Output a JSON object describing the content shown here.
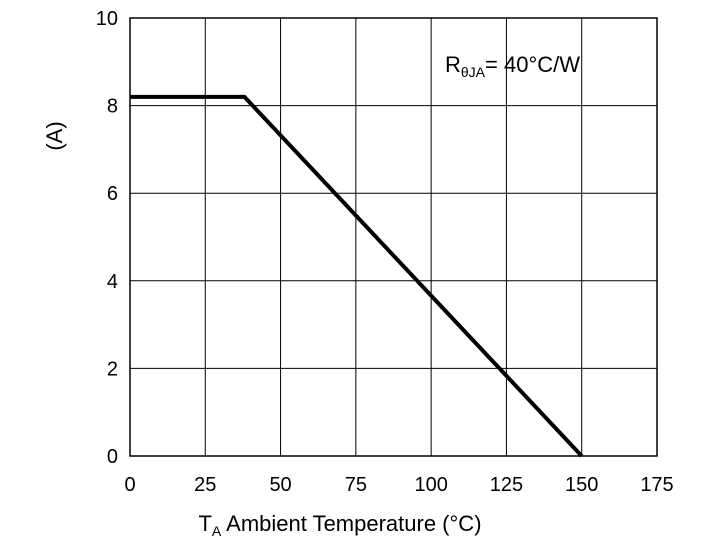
{
  "chart_data": {
    "type": "line",
    "xlabel_prefix": "T",
    "xlabel_sub": "A",
    "xlabel_rest": " Ambient Temperature (°C)",
    "ylabel": "(A)",
    "xlim": [
      0,
      175
    ],
    "ylim": [
      0,
      10
    ],
    "x_ticks": [
      0,
      25,
      50,
      75,
      100,
      125,
      150,
      175
    ],
    "x_tick_labels": [
      "0",
      "25",
      "50",
      "75",
      "100",
      "125",
      "150",
      "175"
    ],
    "y_ticks": [
      0,
      2,
      4,
      6,
      8,
      10
    ],
    "y_tick_labels": [
      "0",
      "2",
      "4",
      "6",
      "8",
      "10"
    ],
    "grid": true,
    "annotation": {
      "main": "R",
      "sub": "θJA",
      "rest": "= 40°C/W"
    },
    "series": [
      {
        "color": "#000000",
        "x": [
          0,
          38,
          150
        ],
        "y": [
          8.2,
          8.2,
          0
        ]
      }
    ]
  }
}
